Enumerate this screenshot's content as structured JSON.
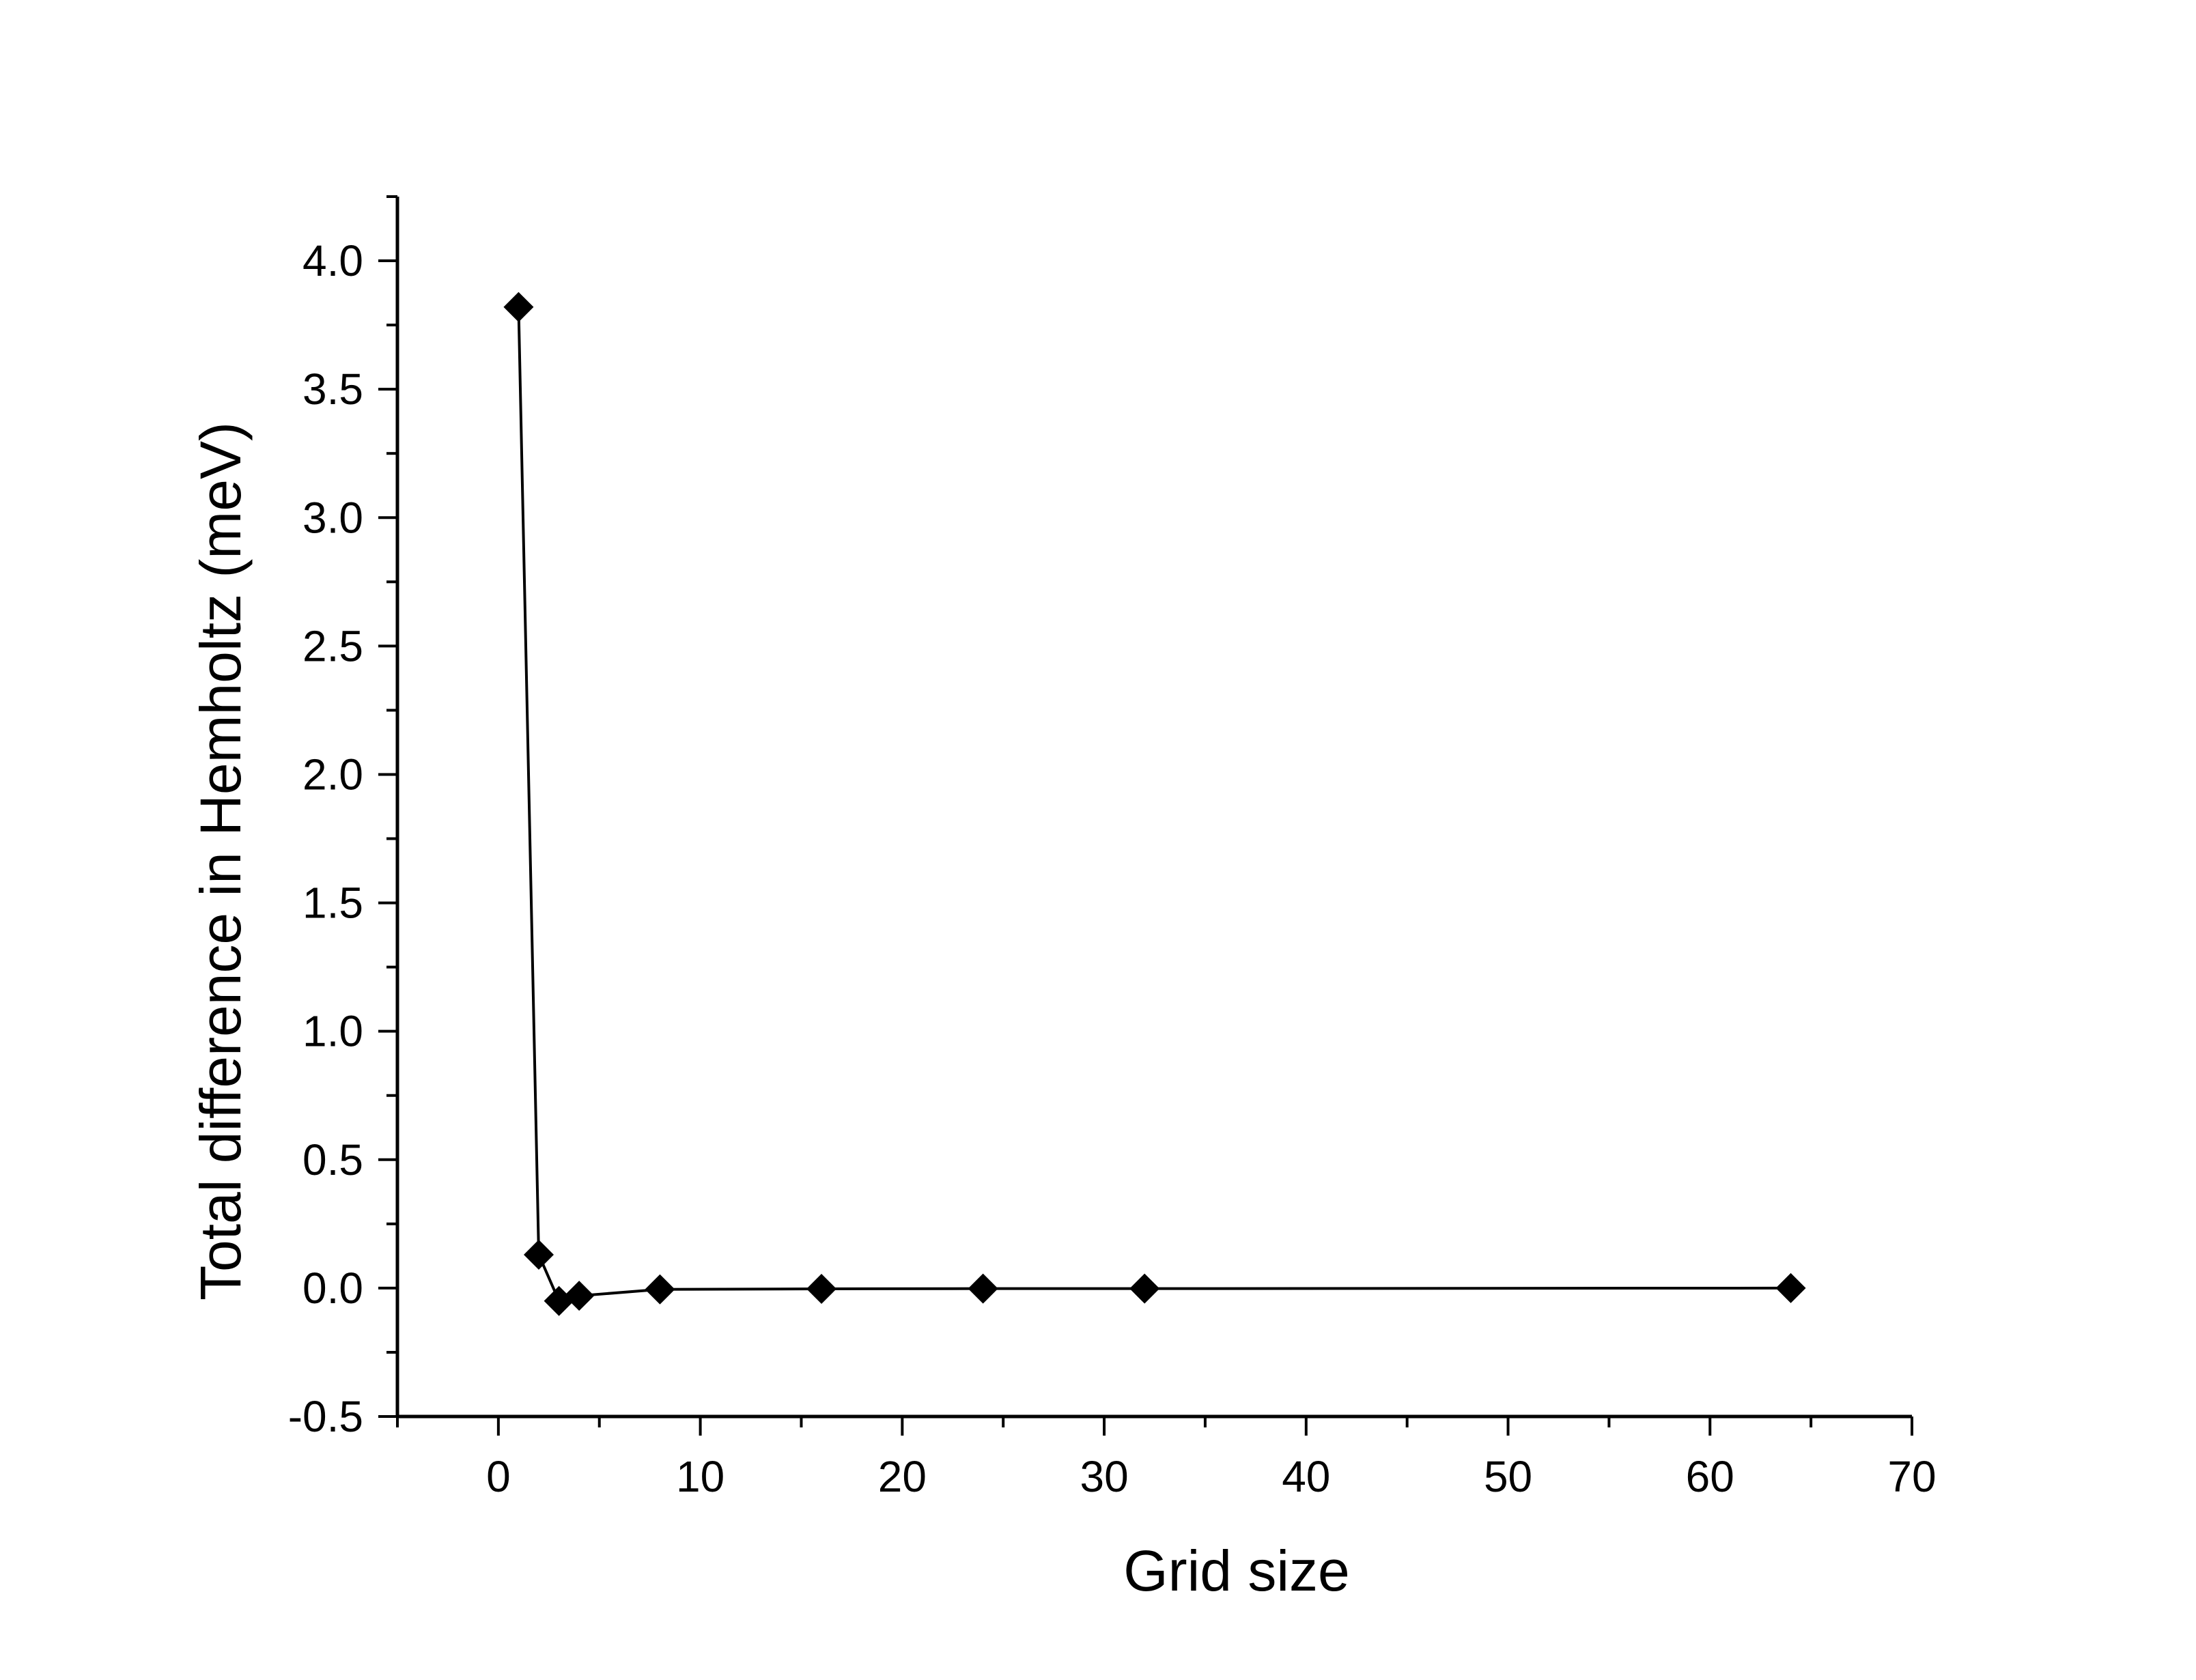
{
  "chart_data": {
    "type": "line",
    "title": "",
    "xlabel": "Grid size",
    "ylabel": "Total difference in Hemholtz (meV)",
    "xlim": [
      -5,
      70
    ],
    "ylim": [
      -0.5,
      4.25
    ],
    "x_ticks": [
      0,
      10,
      20,
      30,
      40,
      50,
      60,
      70
    ],
    "x_tick_labels": [
      "0",
      "10",
      "20",
      "30",
      "40",
      "50",
      "60",
      "70"
    ],
    "y_ticks": [
      -0.5,
      0.0,
      0.5,
      1.0,
      1.5,
      2.0,
      2.5,
      3.0,
      3.5,
      4.0
    ],
    "y_tick_labels": [
      "-0.5",
      "0.0",
      "0.5",
      "1.0",
      "1.5",
      "2.0",
      "2.5",
      "3.0",
      "3.5",
      "4.0"
    ],
    "grid": false,
    "legend": "none",
    "marker": "diamond",
    "color": "#000000",
    "series": [
      {
        "x": [
          1,
          2,
          3,
          4,
          8,
          16,
          24,
          32,
          64
        ],
        "y": [
          3.82,
          0.13,
          -0.05,
          -0.03,
          -0.005,
          -0.003,
          -0.002,
          -0.002,
          0.0
        ]
      }
    ]
  }
}
